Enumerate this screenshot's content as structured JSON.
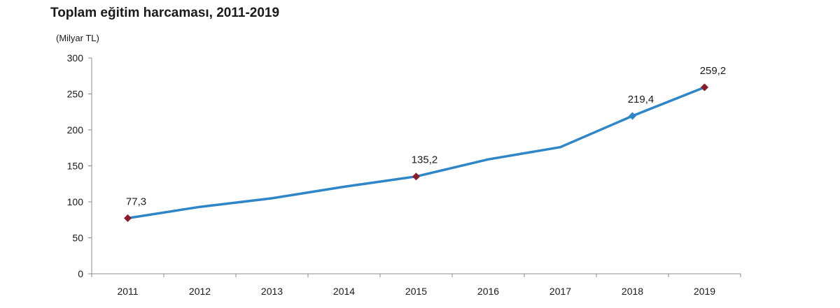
{
  "chart_data": {
    "type": "line",
    "title": "Toplam eğitim harcaması, 2011-2019",
    "ylabel": "(Milyar TL)",
    "xlabel": "",
    "categories": [
      "2011",
      "2012",
      "2013",
      "2014",
      "2015",
      "2016",
      "2017",
      "2018",
      "2019"
    ],
    "series": [
      {
        "values": [
          77.3,
          93,
          105,
          121,
          135.2,
          159,
          176,
          219.4,
          259.2
        ],
        "color": "#2e86c8"
      }
    ],
    "data_labels": [
      {
        "index": 0,
        "text": "77,3"
      },
      {
        "index": 4,
        "text": "135,2"
      },
      {
        "index": 7,
        "text": "219,4"
      },
      {
        "index": 8,
        "text": "259,2"
      }
    ],
    "markers": [
      {
        "index": 0,
        "color": "#8b1a2b"
      },
      {
        "index": 4,
        "color": "#8b1a2b"
      },
      {
        "index": 7,
        "color": "#2e86c8"
      },
      {
        "index": 8,
        "color": "#8b1a2b"
      }
    ],
    "ylim": [
      0,
      300
    ],
    "yticks": [
      0,
      50,
      100,
      150,
      200,
      250,
      300
    ],
    "grid": false,
    "legend": "none"
  }
}
